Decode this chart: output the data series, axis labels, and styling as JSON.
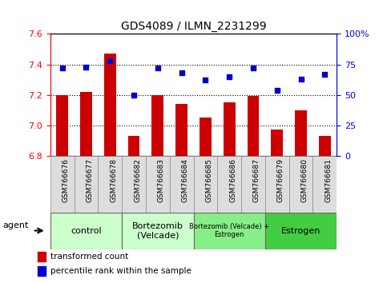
{
  "title": "GDS4089 / ILMN_2231299",
  "samples": [
    "GSM766676",
    "GSM766677",
    "GSM766678",
    "GSM766682",
    "GSM766683",
    "GSM766684",
    "GSM766685",
    "GSM766686",
    "GSM766687",
    "GSM766679",
    "GSM766680",
    "GSM766681"
  ],
  "bar_values": [
    7.2,
    7.22,
    7.47,
    6.93,
    7.2,
    7.14,
    7.05,
    7.15,
    7.19,
    6.97,
    7.1,
    6.93
  ],
  "scatter_values": [
    72,
    73,
    78,
    50,
    72,
    68,
    62,
    65,
    72,
    54,
    63,
    67
  ],
  "ylim_left": [
    6.8,
    7.6
  ],
  "ylim_right": [
    0,
    100
  ],
  "yticks_left": [
    6.8,
    7.0,
    7.2,
    7.4,
    7.6
  ],
  "yticks_right": [
    0,
    25,
    50,
    75,
    100
  ],
  "ytick_labels_right": [
    "0",
    "25",
    "50",
    "75",
    "100%"
  ],
  "bar_color": "#cc0000",
  "scatter_color": "#0000cc",
  "bar_width": 0.5,
  "groups": [
    {
      "label": "control",
      "start": 0,
      "end": 3,
      "color": "#ccffcc"
    },
    {
      "label": "Bortezomib\n(Velcade)",
      "start": 3,
      "end": 6,
      "color": "#ccffcc"
    },
    {
      "label": "Bortezomib (Velcade) +\nEstrogen",
      "start": 6,
      "end": 9,
      "color": "#88ee88"
    },
    {
      "label": "Estrogen",
      "start": 9,
      "end": 12,
      "color": "#44dd44"
    }
  ],
  "agent_label": "agent",
  "legend_bar_label": "transformed count",
  "legend_scatter_label": "percentile rank within the sample",
  "background_color": "#ffffff",
  "plot_bg_color": "#ffffff",
  "title_fontsize": 10,
  "axis_fontsize": 7,
  "tick_fontsize": 8
}
